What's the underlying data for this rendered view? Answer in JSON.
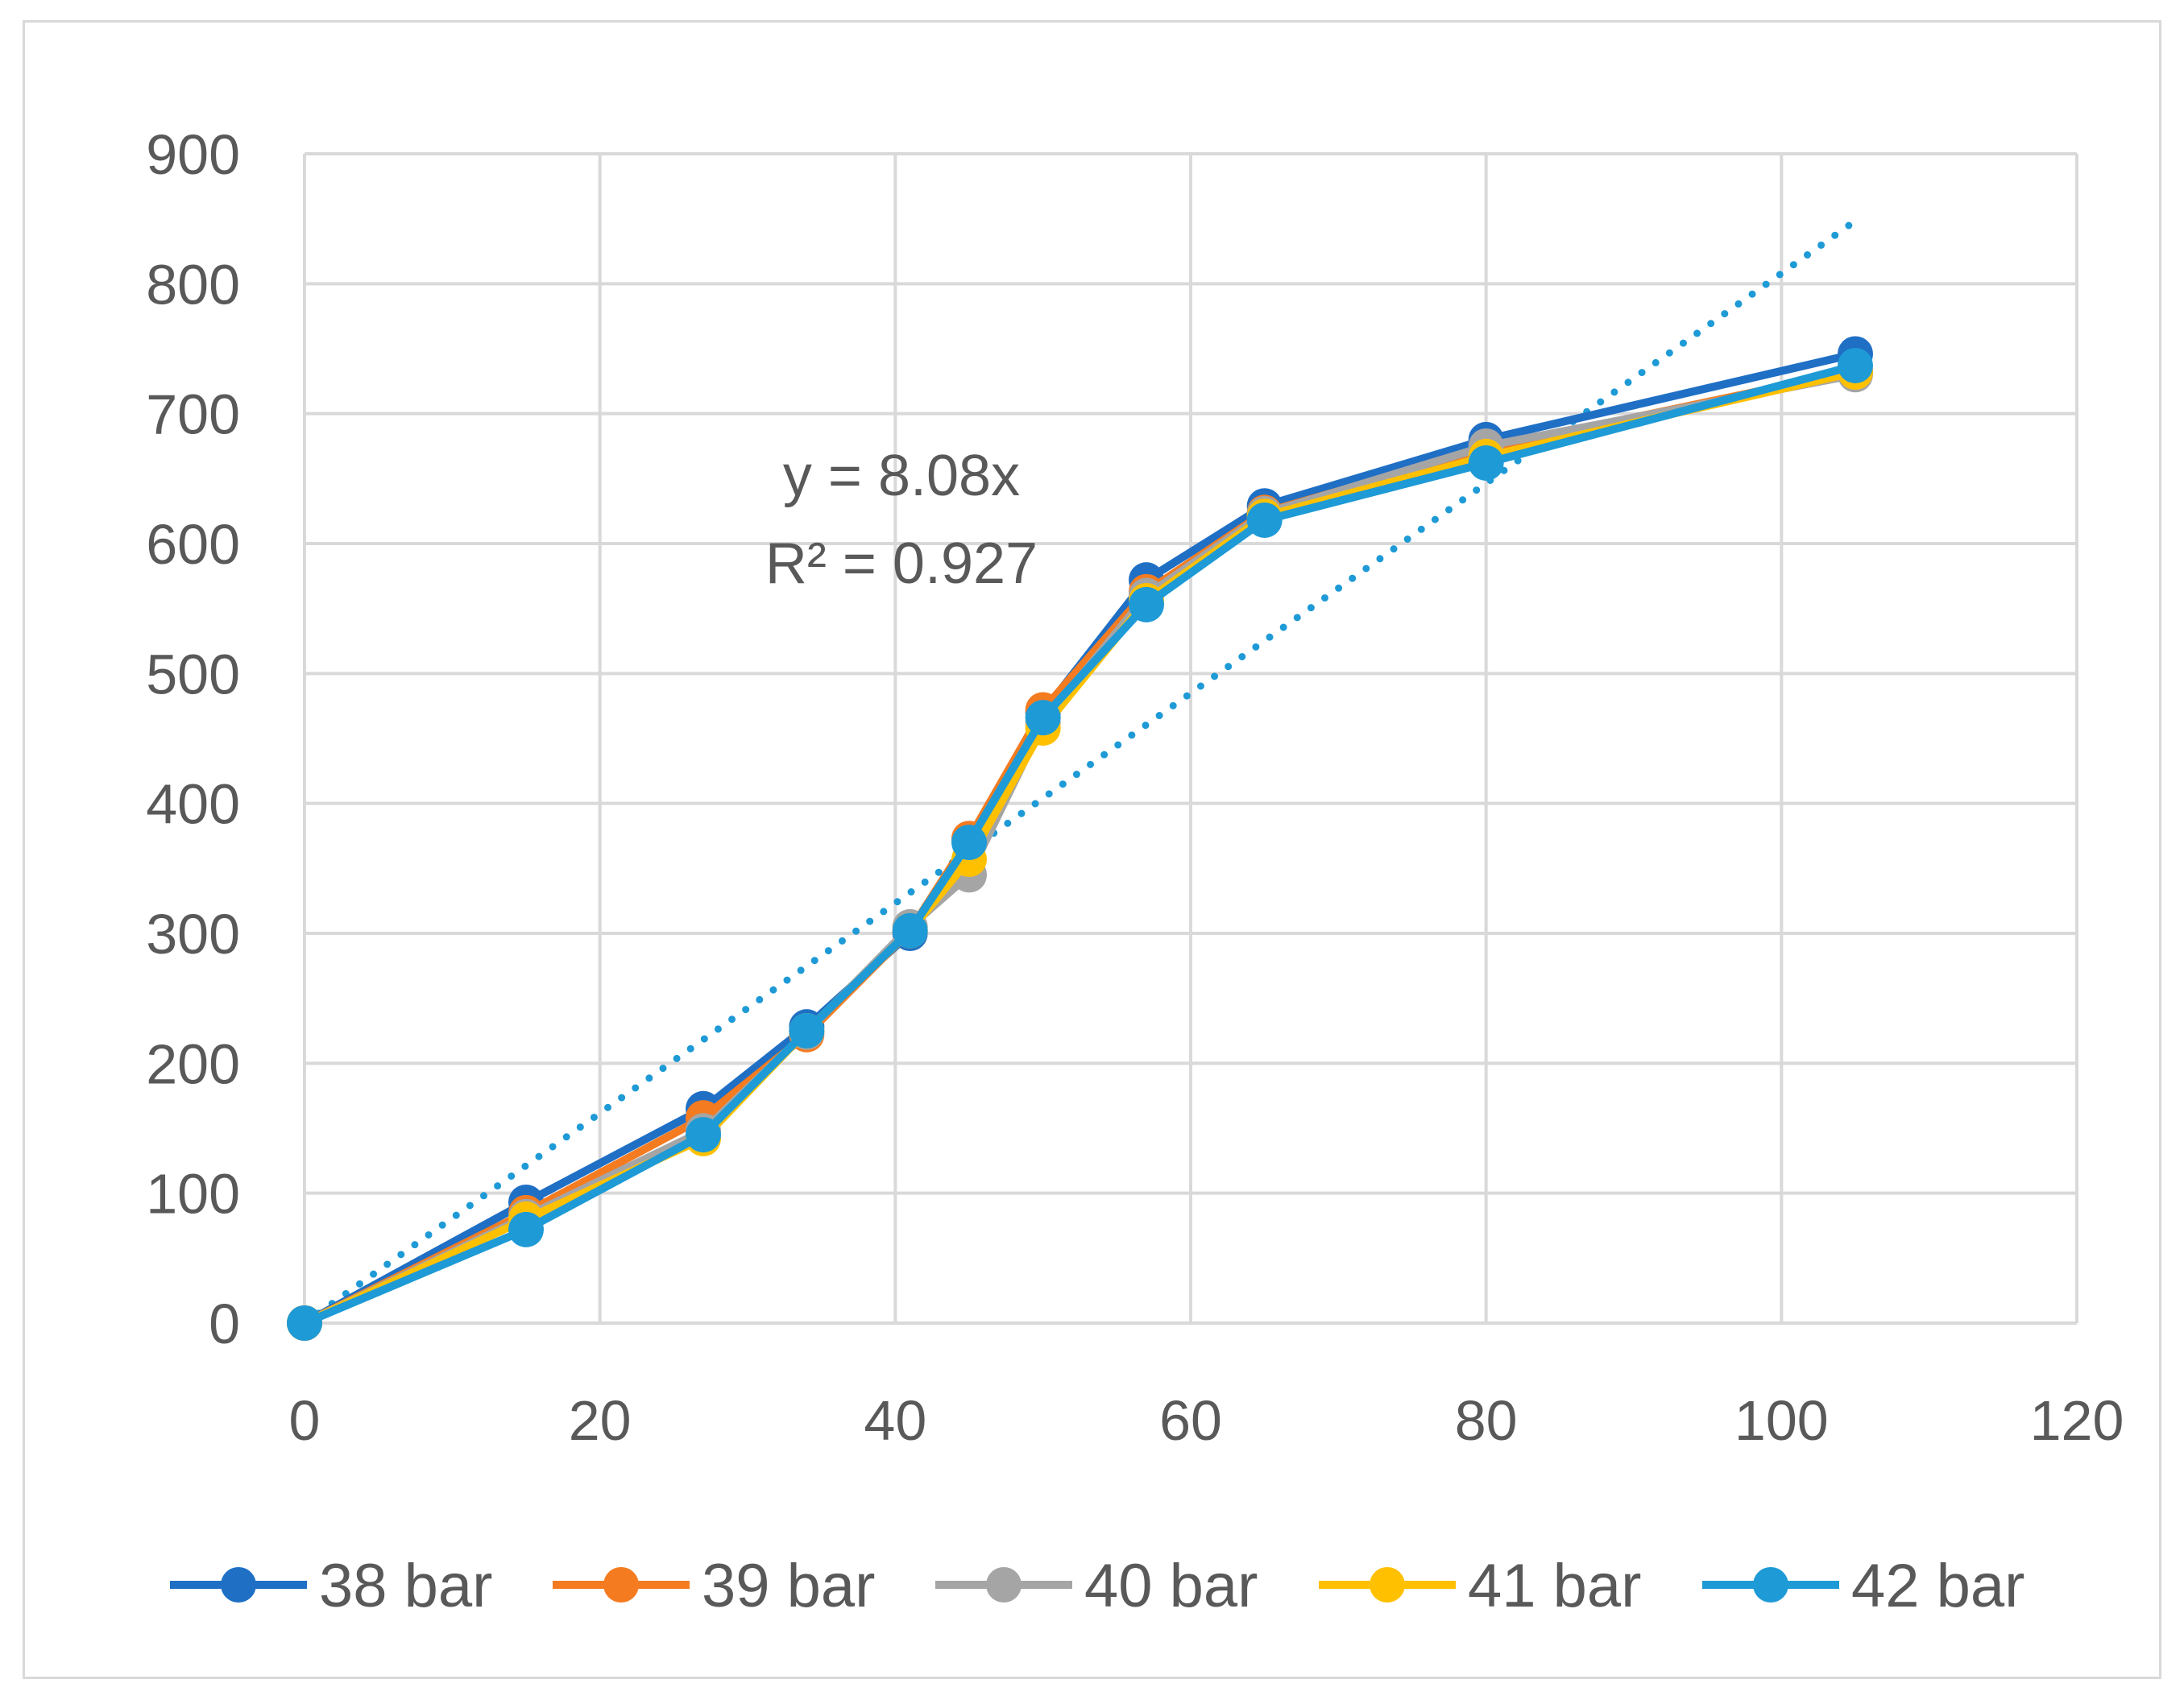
{
  "chart_data": {
    "type": "line",
    "title": "",
    "xlabel": "",
    "ylabel": "",
    "xlim": [
      0,
      120
    ],
    "ylim": [
      0,
      900
    ],
    "x_ticks": [
      0,
      20,
      40,
      60,
      80,
      100,
      120
    ],
    "y_ticks": [
      0,
      100,
      200,
      300,
      400,
      500,
      600,
      700,
      800,
      900
    ],
    "grid": true,
    "legend_position": "bottom",
    "x": [
      0,
      15,
      27,
      34,
      41,
      45,
      50,
      57,
      65,
      80,
      105
    ],
    "series": [
      {
        "name": "38 bar",
        "color": "#1f6fc5",
        "values": [
          0,
          93,
          165,
          228,
          300,
          372,
          470,
          572,
          629,
          680,
          746
        ]
      },
      {
        "name": "39 bar",
        "color": "#f47b20",
        "values": [
          0,
          85,
          158,
          222,
          302,
          373,
          472,
          563,
          624,
          673,
          733
        ]
      },
      {
        "name": "40 bar",
        "color": "#a5a5a5",
        "values": [
          0,
          82,
          148,
          224,
          305,
          345,
          462,
          560,
          623,
          675,
          730
        ]
      },
      {
        "name": "41 bar",
        "color": "#ffc000",
        "values": [
          0,
          80,
          142,
          225,
          302,
          357,
          458,
          556,
          621,
          667,
          732
        ]
      },
      {
        "name": "42 bar",
        "color": "#1e9ad6",
        "values": [
          0,
          72,
          145,
          225,
          302,
          370,
          466,
          553,
          618,
          662,
          737
        ]
      }
    ],
    "trendline": {
      "type": "linear",
      "style": "dotted",
      "color": "#1e9ad6",
      "slope": 8.08,
      "x_range": [
        0,
        105
      ],
      "equation": "y = 8.08x",
      "r_squared": "R² = 0.927"
    }
  }
}
